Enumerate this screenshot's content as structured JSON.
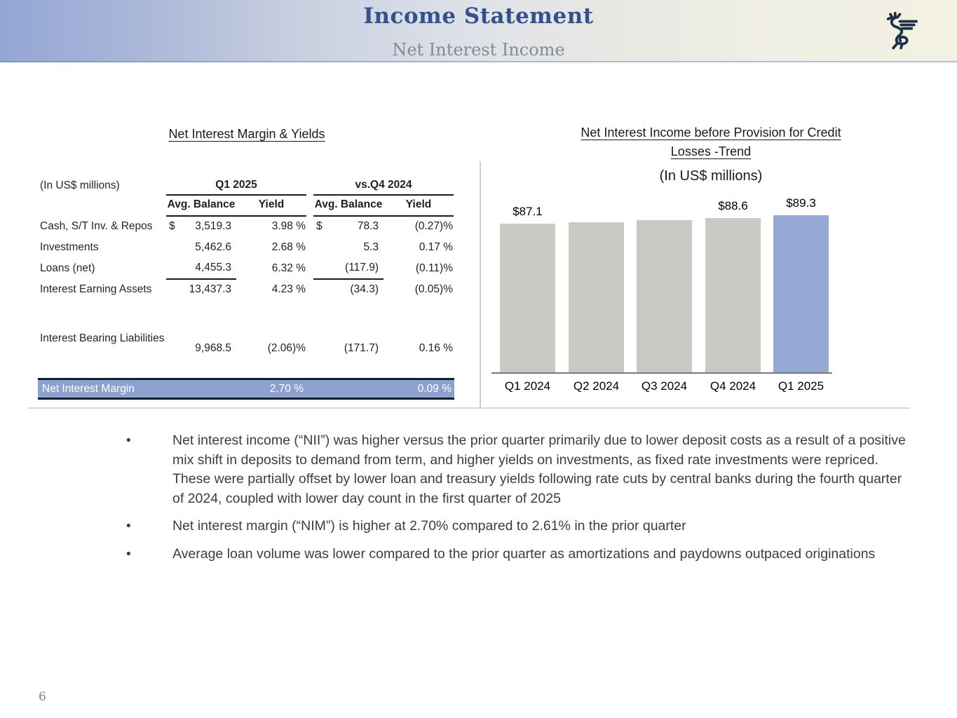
{
  "header": {
    "title": "Income Statement",
    "subtitle": "Net Interest Income",
    "logo_icon": "griffin-logo",
    "colors": {
      "title": "#33528b",
      "subtitle": "#88898d",
      "gradient_left": "#94a7d3",
      "gradient_right": "#f3f1e2",
      "logo_navy": "#1d3048"
    }
  },
  "table": {
    "title": "Net Interest Margin & Yields",
    "units_note": "(In US$ millions)",
    "dollar_sign": "$",
    "group_headers": {
      "q1": "Q1 2025",
      "q4": "vs.Q4 2024"
    },
    "sub_headers": {
      "balance": "Avg. Balance",
      "yield": "Yield"
    },
    "rows": [
      {
        "label": "Cash, S/T Inv. & Repos",
        "q1_balance": "3,519.3",
        "q1_yield": "3.98 %",
        "q4_balance": "78.3",
        "q4_yield": "(0.27)%"
      },
      {
        "label": "Investments",
        "q1_balance": "5,462.6",
        "q1_yield": "2.68 %",
        "q4_balance": "5.3",
        "q4_yield": "0.17 %"
      },
      {
        "label": "Loans (net)",
        "q1_balance": "4,455.3",
        "q1_yield": "6.32 %",
        "q4_balance": "(117.9)",
        "q4_yield": "(0.11)%"
      },
      {
        "label": "Interest Earning Assets",
        "q1_balance": "13,437.3",
        "q1_yield": "4.23 %",
        "q4_balance": "(34.3)",
        "q4_yield": "(0.05)%"
      },
      {
        "label": "Interest Bearing Liabilities",
        "q1_balance": "9,968.5",
        "q1_yield": "(2.06)%",
        "q4_balance": "(171.7)",
        "q4_yield": "0.16 %"
      }
    ],
    "total_row": {
      "label": "Net Interest Margin",
      "q1_yield": "2.70 %",
      "q4_yield": "0.09 %",
      "highlight_color": "#8ca1cd"
    }
  },
  "chart": {
    "title_line1": "Net Interest Income before Provision for Credit",
    "title_line2": "Losses -Trend",
    "units_note": "(In US$ millions)"
  },
  "chart_data": {
    "type": "bar",
    "title": "Net Interest Income before Provision for Credit Losses -Trend",
    "subtitle": "(In US$ millions)",
    "categories": [
      "Q1 2024",
      "Q2 2024",
      "Q3 2024",
      "Q4 2024",
      "Q1 2025"
    ],
    "values": [
      87.1,
      87.5,
      88.0,
      88.6,
      89.3
    ],
    "data_labels": [
      "$87.1",
      "",
      "",
      "$88.6",
      "$89.3"
    ],
    "bar_color": "#cbc9c3",
    "highlight_index": 4,
    "highlight_color": "#96a9d4",
    "ylim": [
      48,
      92
    ],
    "grid": false,
    "legend": false
  },
  "bullets": [
    "Net interest income (“NII”) was higher versus the prior quarter primarily due to lower deposit costs as a result of a positive mix shift in deposits to demand from term, and higher yields on investments, as fixed rate investments were repriced.  These were partially offset by lower loan and treasury yields following rate cuts by central banks during the fourth quarter of 2024, coupled with lower day count in the first quarter of 2025",
    "Net interest margin (“NIM”) is higher at 2.70% compared to 2.61% in the prior quarter",
    "Average loan volume was lower compared to the prior quarter as amortizations and paydowns outpaced originations"
  ],
  "footer": {
    "page_number": "6"
  }
}
